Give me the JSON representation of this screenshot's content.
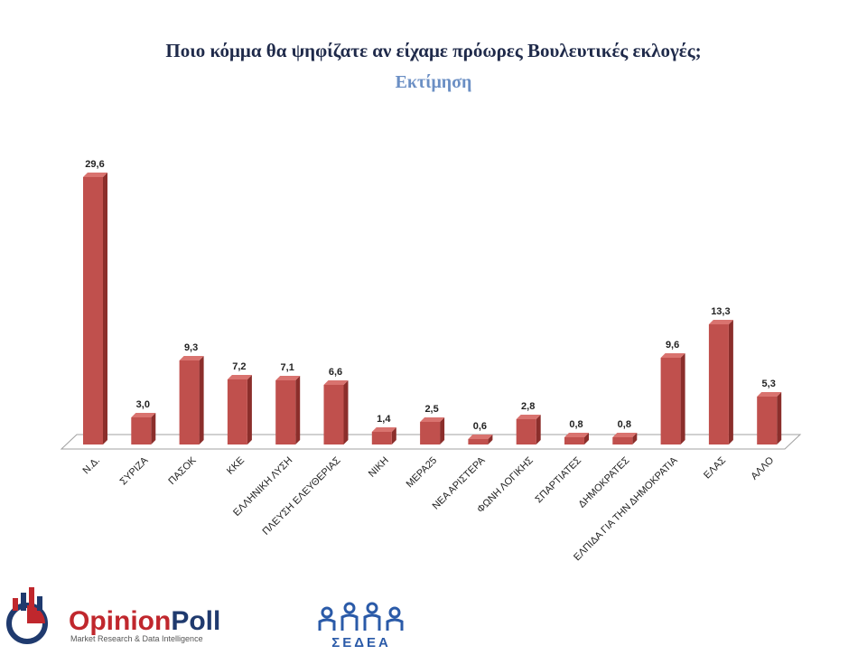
{
  "chart_data": {
    "type": "bar",
    "title": "Ποιο κόμμα θα ψηφίζατε αν είχαμε πρόωρες Βουλευτικές εκλογές;",
    "subtitle": "Εκτίμηση",
    "categories": [
      "Ν.Δ.",
      "ΣΥΡΙΖΑ",
      "ΠΑΣΟΚ",
      "ΚΚΕ",
      "ΕΛΛΗΝΙΚΗ ΛΥΣΗ",
      "ΠΛΕΥΣΗ ΕΛΕΥΘΕΡΙΑΣ",
      "ΝΙΚΗ",
      "ΜΕΡΑ25",
      "ΝΕΑ ΑΡΙΣΤΕΡΑ",
      "ΦΩΝΗ ΛΟΓΙΚΗΣ",
      "ΣΠΑΡΤΙΑΤΕΣ",
      "ΔΗΜΟΚΡΑΤΕΣ",
      "ΕΛΠΙΔΑ ΓΙΑ ΤΗΝ ΔΗΜΟΚΡΑΤΙΑ",
      "ΕΛΑΣ",
      "ΑΛΛΟ"
    ],
    "values": [
      29.6,
      3.0,
      9.3,
      7.2,
      7.1,
      6.6,
      1.4,
      2.5,
      0.6,
      2.8,
      0.8,
      0.8,
      9.6,
      13.3,
      5.3
    ],
    "data_labels": [
      "29,6",
      "3,0",
      "9,3",
      "7,2",
      "7,1",
      "6,6",
      "1,4",
      "2,5",
      "0,6",
      "2,8",
      "0,8",
      "0,8",
      "9,6",
      "13,3",
      "5,3"
    ],
    "xlabel": "",
    "ylabel": "",
    "ylim": [
      0,
      30
    ],
    "grid": false,
    "legend": "none",
    "colors": {
      "bar": "#c0504d",
      "bar_side": "#8b2e2b",
      "bar_top": "#d9736f",
      "floor": "#ffffff",
      "floor_edge": "#a0a0a0"
    }
  },
  "logos": {
    "opinionpoll_name_part1": "Opinion",
    "opinionpoll_name_part2": "Poll",
    "opinionpoll_tagline": "Market Research & Data Intelligence",
    "sedea_name": "ΣΕΔΕΑ",
    "colors": {
      "opinion": "#c0272d",
      "poll": "#1f3a6e",
      "sedea": "#2a5aa8"
    }
  }
}
